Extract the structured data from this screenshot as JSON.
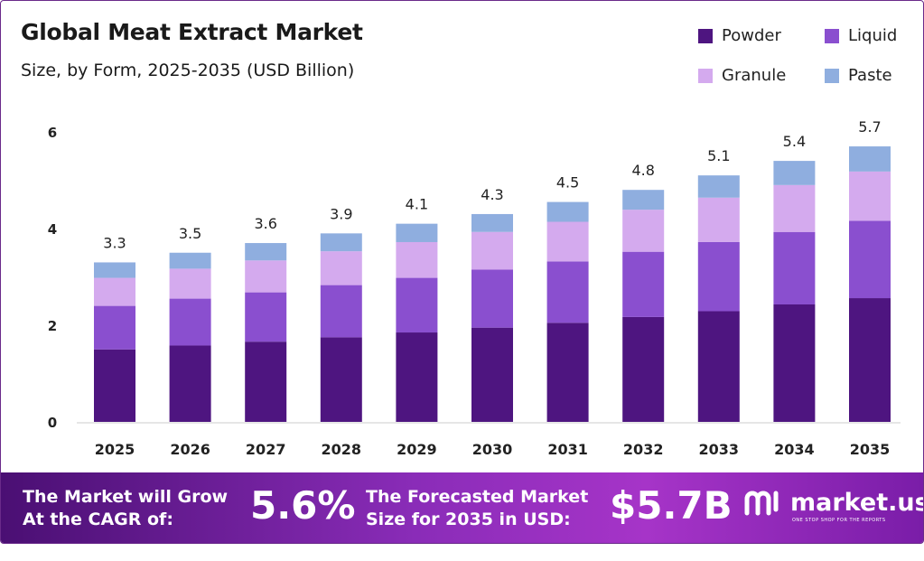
{
  "header": {
    "title": "Global Meat Extract Market",
    "subtitle": "Size, by Form, 2025-2035 (USD Billion)"
  },
  "legend": [
    {
      "label": "Powder",
      "color": "#4e1580"
    },
    {
      "label": "Liquid",
      "color": "#8a4fcf"
    },
    {
      "label": "Granule",
      "color": "#d4aaee"
    },
    {
      "label": "Paste",
      "color": "#8faedf"
    }
  ],
  "chart_data": {
    "type": "bar",
    "stacked": true,
    "categories": [
      "2025",
      "2026",
      "2027",
      "2028",
      "2029",
      "2030",
      "2031",
      "2032",
      "2033",
      "2034",
      "2035"
    ],
    "series": [
      {
        "name": "Powder",
        "color": "#4e1580",
        "values": [
          1.5,
          1.58,
          1.66,
          1.75,
          1.85,
          1.95,
          2.05,
          2.17,
          2.29,
          2.43,
          2.56
        ]
      },
      {
        "name": "Liquid",
        "color": "#8a4fcf",
        "values": [
          0.9,
          0.97,
          1.02,
          1.08,
          1.13,
          1.2,
          1.27,
          1.35,
          1.43,
          1.5,
          1.6
        ]
      },
      {
        "name": "Granule",
        "color": "#d4aaee",
        "values": [
          0.58,
          0.62,
          0.66,
          0.7,
          0.74,
          0.78,
          0.82,
          0.87,
          0.92,
          0.97,
          1.02
        ]
      },
      {
        "name": "Paste",
        "color": "#8faedf",
        "values": [
          0.32,
          0.33,
          0.36,
          0.37,
          0.38,
          0.37,
          0.41,
          0.41,
          0.46,
          0.5,
          0.52
        ]
      }
    ],
    "totals": [
      "3.3",
      "3.5",
      "3.6",
      "3.9",
      "4.1",
      "4.3",
      "4.5",
      "4.8",
      "5.1",
      "5.4",
      "5.7"
    ],
    "ylim": [
      0,
      6
    ],
    "yticks": [
      0,
      2,
      4,
      6
    ],
    "grid": false,
    "legend_position": "top-right"
  },
  "footer": {
    "cagr_label_1": "The Market will Grow",
    "cagr_label_2": "At the CAGR of:",
    "cagr_value": "5.6%",
    "forecast_label_1": "The Forecasted Market",
    "forecast_label_2": "Size for 2035 in USD:",
    "forecast_value": "$5.7B",
    "brand": "market.us",
    "tagline": "ONE STOP SHOP FOR THE REPORTS"
  }
}
